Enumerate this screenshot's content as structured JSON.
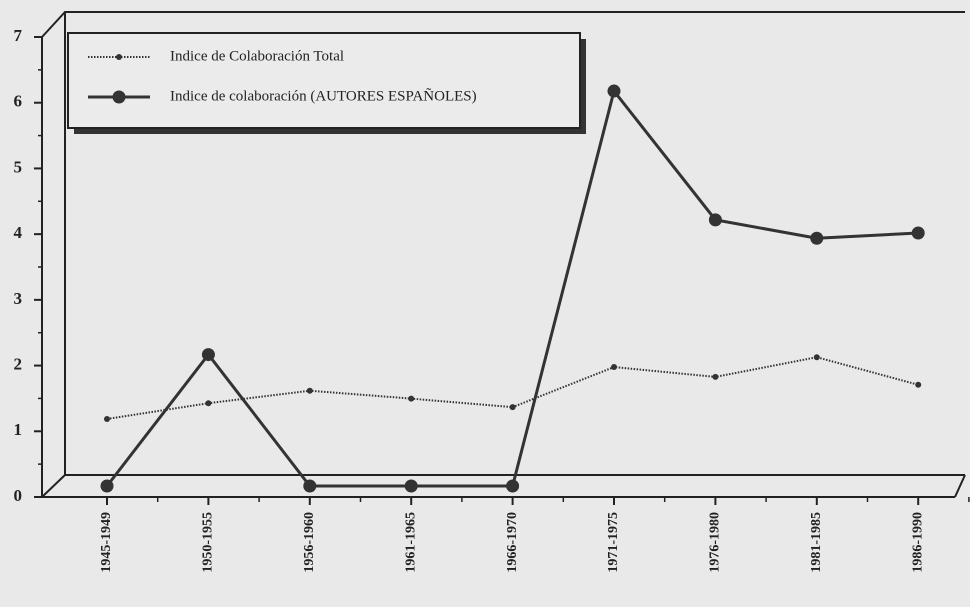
{
  "chart_data": {
    "type": "line",
    "categories": [
      "1945-1949",
      "1950-1955",
      "1956-1960",
      "1961-1965",
      "1966-1970",
      "1971-1975",
      "1976-1980",
      "1981-1985",
      "1986-1990"
    ],
    "series": [
      {
        "name": "Indice de Colaboración Total",
        "color": "#333333",
        "marker": "small",
        "values": [
          1.02,
          1.26,
          1.45,
          1.33,
          1.2,
          1.81,
          1.66,
          1.96,
          1.54
        ]
      },
      {
        "name": "Indice de colaboración (AUTORES ESPAÑOLES)",
        "color": "#333333",
        "marker": "large",
        "values": [
          0,
          2.0,
          0,
          0,
          0,
          6.01,
          4.05,
          3.77,
          3.85
        ]
      }
    ],
    "ylim": [
      0,
      7
    ],
    "yticks": [
      0,
      1,
      2,
      3,
      4,
      5,
      6,
      7
    ],
    "legend": "upper left"
  }
}
